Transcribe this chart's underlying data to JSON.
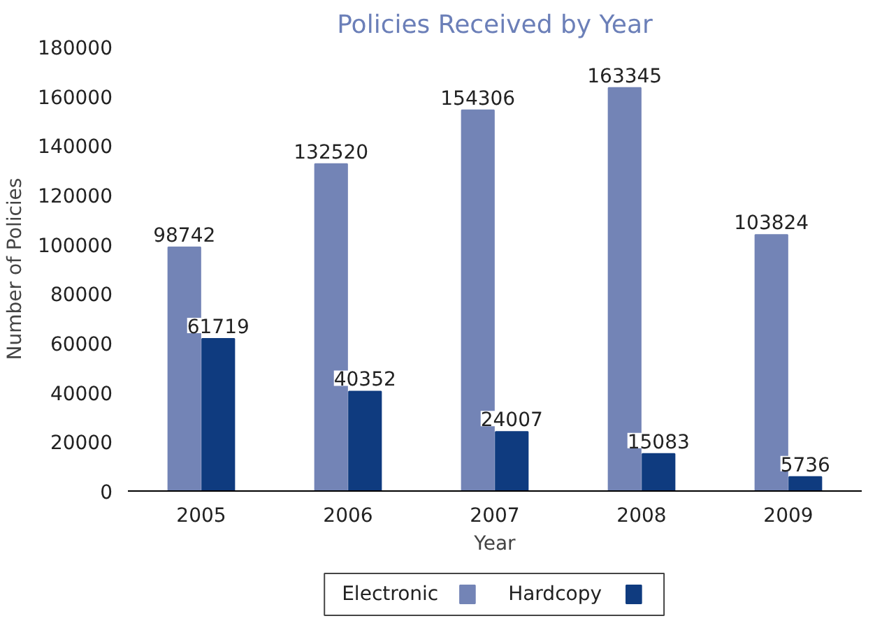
{
  "chart_data": {
    "type": "bar",
    "title": "Policies Received by Year",
    "xlabel": "Year",
    "ylabel": "Number of Policies",
    "categories": [
      "2005",
      "2006",
      "2007",
      "2008",
      "2009"
    ],
    "series": [
      {
        "name": "Electronic",
        "color": "#7384b6",
        "values": [
          98742,
          132520,
          154306,
          163345,
          103824
        ]
      },
      {
        "name": "Hardcopy",
        "color": "#0f3b7f",
        "values": [
          61719,
          40352,
          24007,
          15083,
          5736
        ]
      }
    ],
    "ylim": [
      0,
      180000
    ],
    "yticks": [
      0,
      20000,
      40000,
      60000,
      80000,
      100000,
      120000,
      140000,
      160000,
      180000
    ],
    "data_labels": true,
    "legend": "bottom",
    "grid": false
  }
}
